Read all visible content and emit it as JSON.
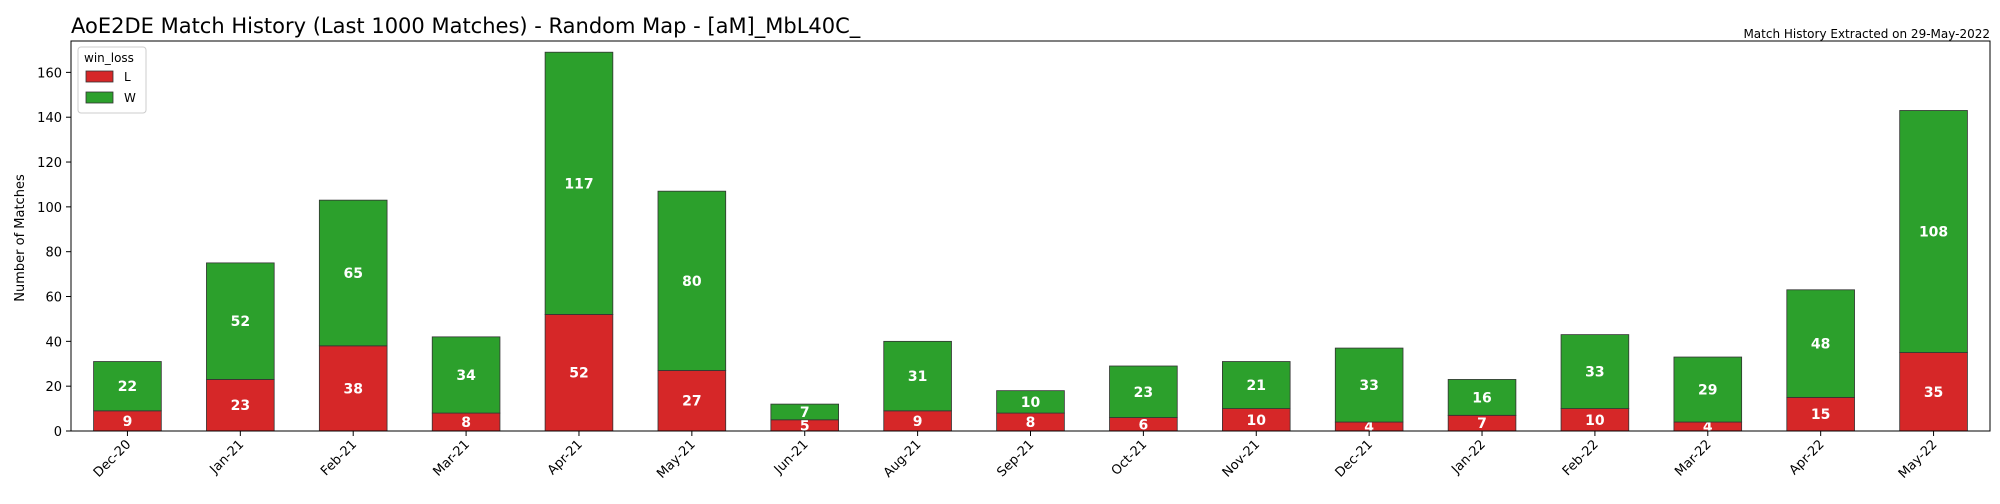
{
  "chart_data": {
    "type": "bar",
    "stacked": true,
    "title": "AoE2DE Match History (Last 1000 Matches) - Random Map - [aM]_MbL40C_",
    "subtitle": "Match History Extracted on 29-May-2022",
    "xlabel": "",
    "ylabel": "Number of Matches",
    "ylim": [
      0,
      174
    ],
    "yticks": [
      0,
      20,
      40,
      60,
      80,
      100,
      120,
      140,
      160
    ],
    "grid": false,
    "legend": {
      "title": "win_loss",
      "placement": "top-left"
    },
    "categories": [
      "Dec-20",
      "Jan-21",
      "Feb-21",
      "Mar-21",
      "Apr-21",
      "May-21",
      "Jun-21",
      "Aug-21",
      "Sep-21",
      "Oct-21",
      "Nov-21",
      "Dec-21",
      "Jan-22",
      "Feb-22",
      "Mar-22",
      "Apr-22",
      "May-22"
    ],
    "series": [
      {
        "name": "L",
        "color": "#d62728",
        "values": [
          9,
          23,
          38,
          8,
          52,
          27,
          5,
          9,
          8,
          6,
          10,
          4,
          7,
          10,
          4,
          15,
          35
        ]
      },
      {
        "name": "W",
        "color": "#2ca02c",
        "values": [
          22,
          52,
          65,
          34,
          117,
          80,
          7,
          31,
          10,
          23,
          21,
          33,
          16,
          33,
          29,
          48,
          108
        ]
      }
    ]
  }
}
